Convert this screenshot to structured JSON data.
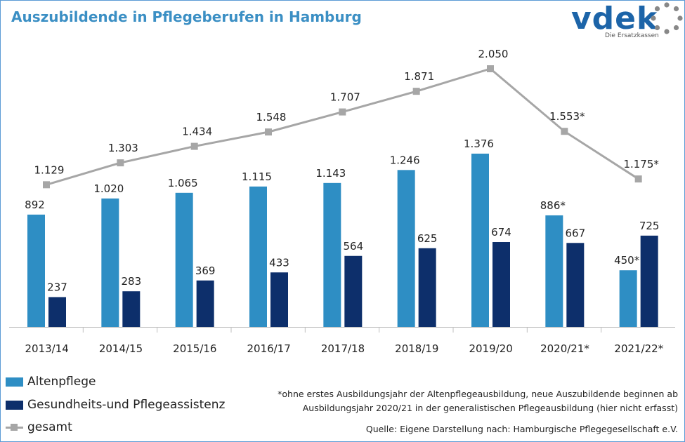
{
  "title": "Auszubildende in Pflegeberufen in Hamburg",
  "logo": {
    "word": "vdek",
    "subtitle": "Die Ersatzkassen"
  },
  "colors": {
    "altenpflege": "#2e8ec4",
    "assistenz": "#0d2f6b",
    "gesamt": "#a6a6a6",
    "title": "#3b8fc4",
    "logo": "#1c64a8"
  },
  "chart_data": {
    "type": "bar",
    "title": "Auszubildende in Pflegeberufen in Hamburg",
    "categories": [
      "2013/14",
      "2014/15",
      "2015/16",
      "2016/17",
      "2017/18",
      "2018/19",
      "2019/20",
      "2020/21*",
      "2021/22*"
    ],
    "series": [
      {
        "name": "Altenpflege",
        "type": "bar",
        "values": [
          892,
          1020,
          1065,
          1115,
          1143,
          1246,
          1376,
          886,
          450
        ],
        "labels": [
          "892",
          "1.020",
          "1.065",
          "1.115",
          "1.143",
          "1.246",
          "1.376",
          "886*",
          "450*"
        ]
      },
      {
        "name": "Gesundheits-und Pflegeassistenz",
        "type": "bar",
        "values": [
          237,
          283,
          369,
          433,
          564,
          625,
          674,
          667,
          725
        ],
        "labels": [
          "237",
          "283",
          "369",
          "433",
          "564",
          "625",
          "674",
          "667",
          "725"
        ]
      },
      {
        "name": "gesamt",
        "type": "line",
        "values": [
          1129,
          1303,
          1434,
          1548,
          1707,
          1871,
          2050,
          1553,
          1175
        ],
        "labels": [
          "1.129",
          "1.303",
          "1.434",
          "1.548",
          "1.707",
          "1.871",
          "2.050",
          "1.553*",
          "1.175*"
        ]
      }
    ],
    "xlabel": "",
    "ylabel": "",
    "ylim": [
      0,
      2100
    ],
    "grid": false,
    "legend": "bottom-left"
  },
  "legend": [
    {
      "label": "Altenpflege",
      "kind": "bar",
      "color": "#2e8ec4"
    },
    {
      "label": "Gesundheits-und Pflegeassistenz",
      "kind": "bar",
      "color": "#0d2f6b"
    },
    {
      "label": "gesamt",
      "kind": "line",
      "color": "#a6a6a6"
    }
  ],
  "footnote": {
    "line1": "*ohne erstes Ausbildungsjahr der Altenpflegeausbildung, neue Auszubildende beginnen ab",
    "line2": "Ausbildungsjahr 2020/21 in der generalistischen Pflegeausbildung (hier nicht erfasst)"
  },
  "source": "Quelle: Eigene Darstellung nach: Hamburgische Pflegegesellschaft e.V."
}
